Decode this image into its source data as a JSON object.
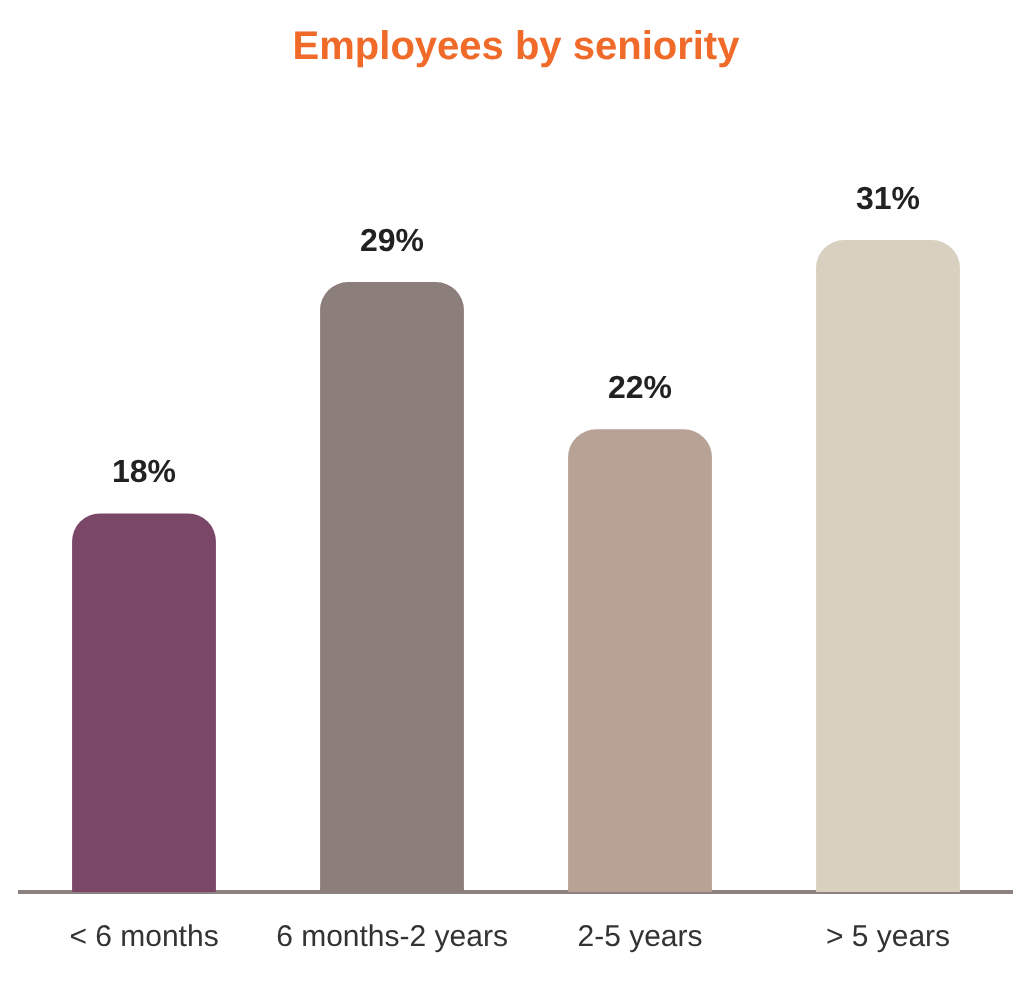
{
  "chart_data": {
    "type": "bar",
    "title": "Employees by seniority",
    "categories": [
      "< 6 months",
      "6 months-2 years",
      "2-5 years",
      "> 5 years"
    ],
    "values": [
      18,
      29,
      22,
      31
    ],
    "colors": [
      "#7a4766",
      "#8c7e7b",
      "#b8a296",
      "#d9d0c0"
    ],
    "value_labels": [
      "18%",
      "29%",
      "22%",
      "31%"
    ],
    "ylim": [
      0,
      31
    ],
    "tick_labels": "x",
    "grid": false,
    "legend": false
  }
}
